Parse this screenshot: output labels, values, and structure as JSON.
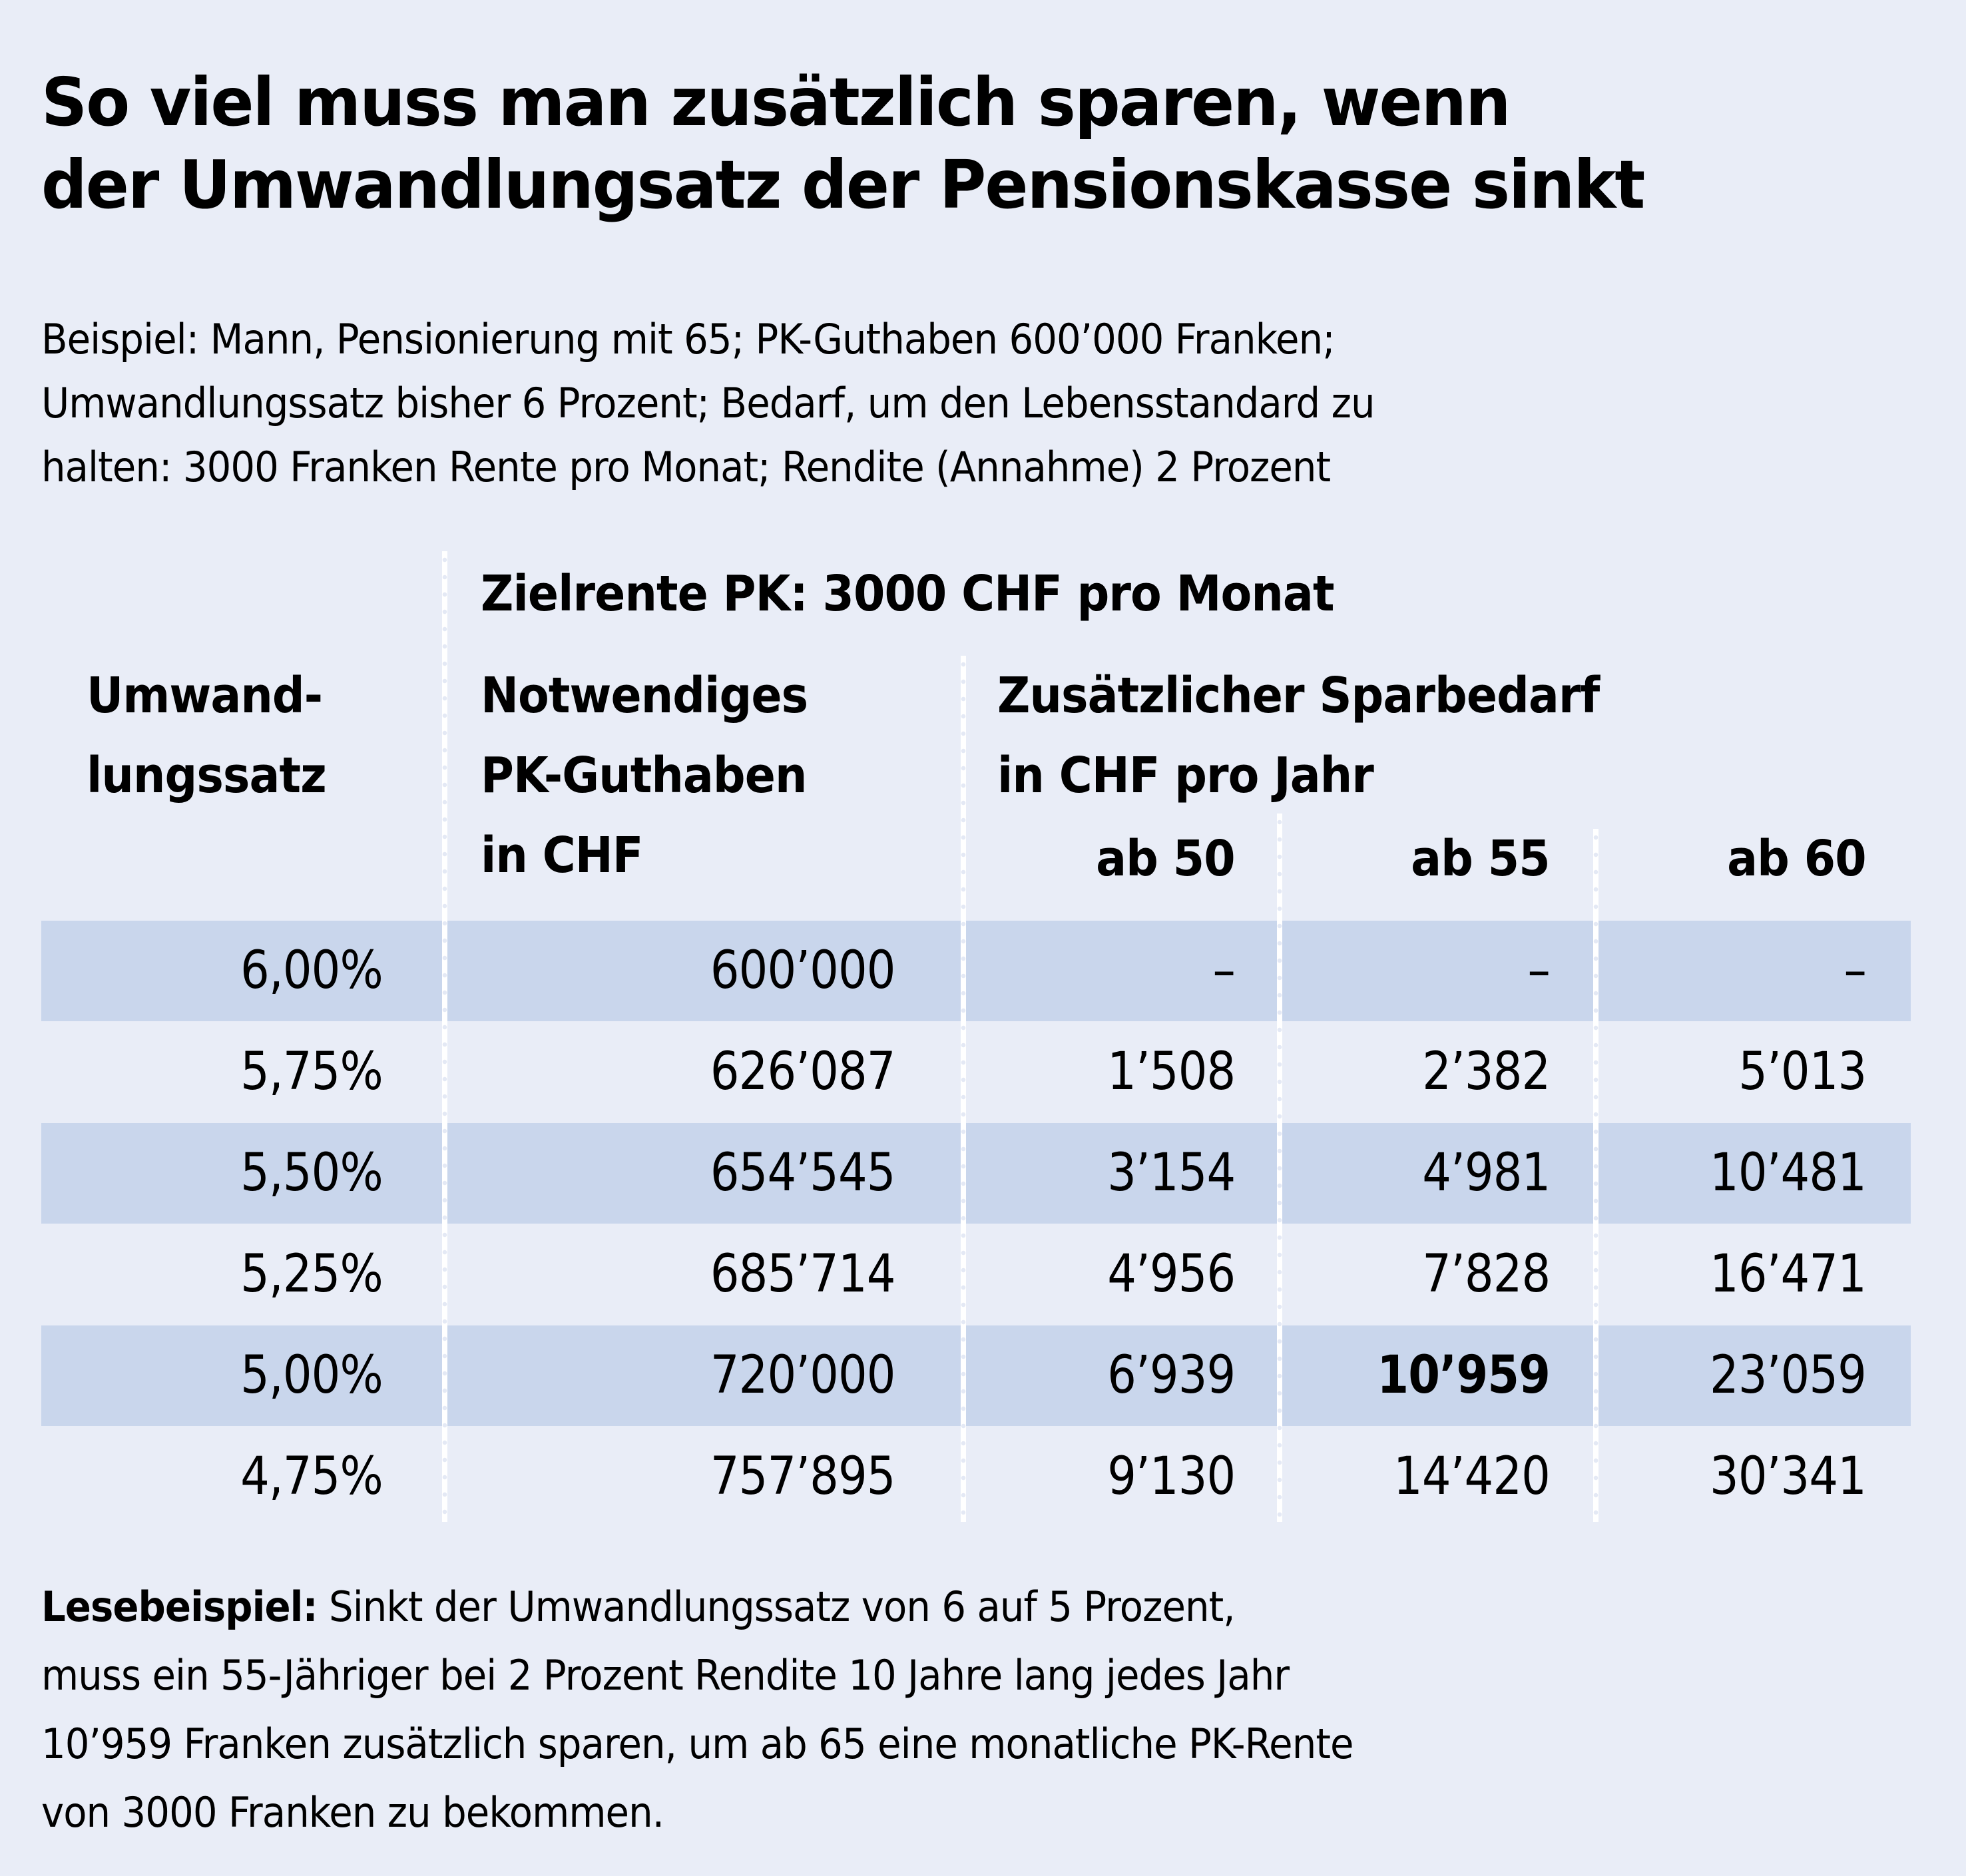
{
  "header": {
    "title_line1": "So viel muss man zusätzlich sparen, wenn",
    "title_line2": "der Umwandlungsatz der Pensionskasse sinkt",
    "subtitle_line1": "Beispiel: Mann, Pensionierung mit 65; PK-Guthaben 600’000 Franken;",
    "subtitle_line2": "Umwandlungssatz bisher 6 Prozent; Bedarf, um den Lebensstandard zu",
    "subtitle_line3": "halten: 3000 Franken Rente pro Monat; Rendite (Annahme) 2 Prozent"
  },
  "colors": {
    "background": "#e9edf7",
    "row_highlight": "#c9d6ec",
    "divider": "#ffffff",
    "text": "#000000"
  },
  "chart_data": {
    "type": "table",
    "title": "So viel muss man zusätzlich sparen, wenn der Umwandlungsatz der Pensionskasse sinkt",
    "group_header": "Zielrente PK: 3000 CHF pro Monat",
    "columns": {
      "rate": {
        "line1": "Umwand-",
        "line2": "lungssatz"
      },
      "capital": {
        "line1": "Notwendiges",
        "line2": "PK-Guthaben",
        "line3": "in CHF"
      },
      "savings": {
        "line1": "Zusätzlicher Sparbedarf",
        "line2": "in CHF pro Jahr"
      },
      "ages": [
        "ab 50",
        "ab 55",
        "ab 60"
      ]
    },
    "rows": [
      {
        "rate": "6,00%",
        "capital": "600’000",
        "ab50": "–",
        "ab55": "–",
        "ab60": "–",
        "shaded": true
      },
      {
        "rate": "5,75%",
        "capital": "626’087",
        "ab50": "1’508",
        "ab55": "2’382",
        "ab60": "5’013",
        "shaded": false
      },
      {
        "rate": "5,50%",
        "capital": "654’545",
        "ab50": "3’154",
        "ab55": "4’981",
        "ab60": "10’481",
        "shaded": true
      },
      {
        "rate": "5,25%",
        "capital": "685’714",
        "ab50": "4’956",
        "ab55": "7’828",
        "ab60": "16’471",
        "shaded": false
      },
      {
        "rate": "5,00%",
        "capital": "720’000",
        "ab50": "6’939",
        "ab55": "10’959",
        "ab60": "23’059",
        "shaded": true
      },
      {
        "rate": "4,75%",
        "capital": "757’895",
        "ab50": "9’130",
        "ab55": "14’420",
        "ab60": "30’341",
        "shaded": false
      }
    ],
    "highlighted_cell": {
      "row": 4,
      "column": "ab55",
      "value": "10’959"
    }
  },
  "footnote": {
    "label": "Lesebeispiel:",
    "line1": " Sinkt der Umwandlungssatz von 6 auf 5 Prozent,",
    "line2": "muss ein 55-Jähriger bei 2 Prozent Rendite 10 Jahre lang jedes Jahr",
    "line3": "10’959 Franken zusätzlich sparen, um ab 65 eine monatliche PK-Rente",
    "line4": "von 3000 Franken zu bekommen."
  }
}
